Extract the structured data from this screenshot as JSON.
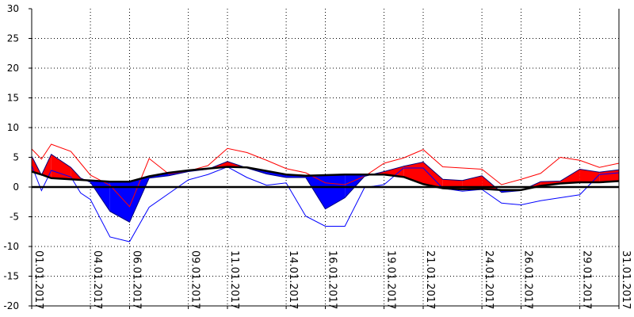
{
  "chart_data": {
    "type": "area",
    "title": "",
    "xlabel": "",
    "ylabel": "",
    "ylim": [
      -20,
      30
    ],
    "yticks": [
      -20,
      -15,
      -10,
      -5,
      0,
      5,
      10,
      15,
      20,
      25,
      30
    ],
    "grid": true,
    "x_tick_labels": [
      "01.01.2017",
      "04.01.2017",
      "06.01.2017",
      "09.01.2017",
      "11.01.2017",
      "14.01.2017",
      "16.01.2017",
      "19.01.2017",
      "21.01.2017",
      "24.01.2017",
      "26.01.2017",
      "29.01.2017",
      "31.01.2017"
    ],
    "x_tick_days": [
      1,
      4,
      6,
      9,
      11,
      14,
      16,
      19,
      21,
      24,
      26,
      29,
      31
    ],
    "days": [
      1,
      1.5,
      2,
      3,
      3.5,
      4,
      5,
      6,
      7,
      8,
      9,
      10,
      11,
      12,
      13,
      14,
      15,
      16,
      17,
      18,
      19,
      20,
      21,
      22,
      23,
      24,
      25,
      26,
      27,
      28,
      29,
      30,
      31
    ],
    "series": [
      {
        "key": "mean",
        "color": "#000000",
        "values": [
          2.6,
          2.1,
          1.5,
          1.3,
          1.2,
          1.1,
          0.9,
          0.9,
          1.8,
          2.4,
          2.8,
          3.1,
          3.4,
          3.3,
          2.7,
          2.1,
          1.9,
          2.0,
          2.1,
          2.1,
          2.1,
          1.7,
          0.5,
          -0.2,
          -0.4,
          -0.3,
          -0.5,
          -0.5,
          0.2,
          0.6,
          0.8,
          0.8,
          1.0
        ]
      },
      {
        "key": "actual",
        "color": "#000080",
        "values": [
          5.2,
          2.0,
          5.5,
          3.3,
          1.5,
          0.8,
          -4.1,
          -5.9,
          1.5,
          1.9,
          2.6,
          3.0,
          4.3,
          3.2,
          2.2,
          1.6,
          1.6,
          -3.7,
          -1.8,
          1.8,
          2.6,
          3.5,
          4.2,
          1.3,
          1.1,
          1.9,
          -0.9,
          -0.6,
          0.9,
          1.0,
          3.0,
          2.5,
          2.9
        ]
      },
      {
        "key": "max",
        "color": "#ff0000",
        "values": [
          6.4,
          4.7,
          7.2,
          6.0,
          4.0,
          2.0,
          0.3,
          -3.3,
          4.8,
          2.2,
          2.7,
          3.6,
          6.5,
          5.8,
          4.5,
          3.1,
          2.4,
          0.7,
          0.4,
          1.8,
          4.0,
          4.9,
          6.3,
          3.4,
          3.2,
          3.0,
          0.4,
          1.3,
          2.3,
          5.0,
          4.5,
          3.3,
          4.0
        ]
      },
      {
        "key": "min",
        "color": "#0000ff",
        "values": [
          3.6,
          -0.6,
          2.8,
          1.7,
          -1.0,
          -2.1,
          -8.4,
          -9.2,
          -3.4,
          -1.1,
          1.2,
          2.1,
          3.4,
          1.6,
          0.3,
          0.7,
          -4.9,
          -6.6,
          -6.6,
          -0.1,
          0.4,
          3.2,
          3.2,
          -0.2,
          -0.7,
          -0.4,
          -2.7,
          -3.0,
          -2.3,
          -1.8,
          -1.3,
          2.1,
          2.4
        ]
      }
    ]
  }
}
